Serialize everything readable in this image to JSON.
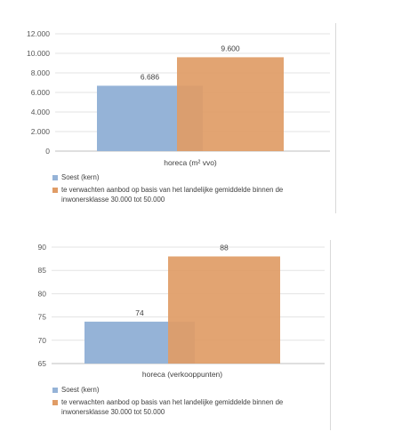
{
  "chart_data": [
    {
      "type": "bar",
      "categories": [
        "horeca (m² vvo)"
      ],
      "series": [
        {
          "name": "Soest (kern)",
          "values": [
            6686
          ],
          "labels": [
            "6.686"
          ],
          "color": "#95b3d7"
        },
        {
          "name": "te verwachten aanbod op basis van het landelijke gemiddelde binnen de inwonersklasse 30.000 tot 50.000",
          "values": [
            9600
          ],
          "labels": [
            "9.600"
          ],
          "color": "#e09c66"
        }
      ],
      "ylim": [
        0,
        12000
      ],
      "yticks": [
        "0",
        "2.000",
        "4.000",
        "6.000",
        "8.000",
        "10.000",
        "12.000"
      ],
      "grid": true,
      "legend": "bottom"
    },
    {
      "type": "bar",
      "categories": [
        "horeca (verkooppunten)"
      ],
      "series": [
        {
          "name": "Soest (kern)",
          "values": [
            74
          ],
          "labels": [
            "74"
          ],
          "color": "#95b3d7"
        },
        {
          "name": "te verwachten aanbod op basis van het landelijke gemiddelde binnen de inwonersklasse 30.000 tot 50.000",
          "values": [
            88
          ],
          "labels": [
            "88"
          ],
          "color": "#e09c66"
        }
      ],
      "ylim": [
        65,
        90
      ],
      "yticks": [
        "65",
        "70",
        "75",
        "80",
        "85",
        "90"
      ],
      "grid": true,
      "legend": "bottom"
    }
  ]
}
